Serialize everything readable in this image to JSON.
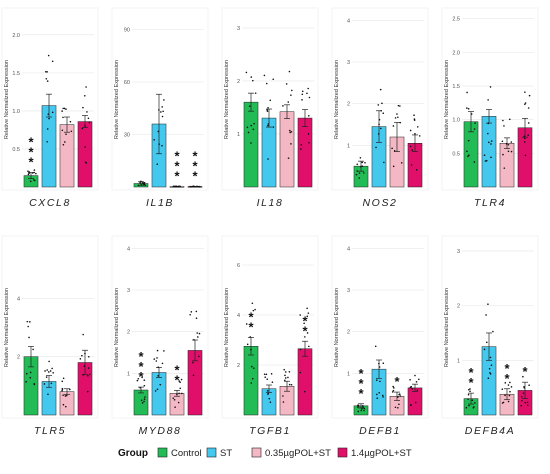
{
  "colors": {
    "Control": "#22bb55",
    "ST": "#44c8ee",
    "0.35µgPOL+ST": "#f4b8c4",
    "1.4µgPOL+ST": "#e0106a"
  },
  "legend": {
    "title": "Group",
    "items": [
      "Control",
      "ST",
      "0.35µgPOL+ST",
      "1.4µgPOL+ST"
    ]
  },
  "chart_data": [
    {
      "type": "bar",
      "title": "CXCL8",
      "ylabel": "Relative Normalized Expression",
      "ylim": [
        0,
        2.3
      ],
      "ticks": [
        "0.5",
        "1.0",
        "1.5",
        "2.0"
      ],
      "tickvals": [
        0.5,
        1.0,
        1.5,
        2.0
      ],
      "categories": [
        "Control",
        "ST",
        "0.35µgPOL+ST",
        "1.4µgPOL+ST"
      ],
      "values": [
        0.15,
        1.07,
        0.82,
        0.86
      ],
      "errors": [
        0.04,
        0.15,
        0.1,
        0.08
      ],
      "annotations": [
        "***",
        "",
        "",
        ""
      ]
    },
    {
      "type": "bar",
      "title": "IL1B",
      "ylabel": "Relative Normalized Expression",
      "ylim": [
        0,
        100
      ],
      "ticks": [
        "30",
        "60",
        "90"
      ],
      "tickvals": [
        30,
        60,
        90
      ],
      "categories": [
        "Control",
        "ST",
        "0.35µgPOL+ST",
        "1.4µgPOL+ST"
      ],
      "values": [
        2,
        36,
        0.3,
        0.3
      ],
      "errors": [
        1,
        17,
        0.1,
        0.1
      ],
      "annotations": [
        "",
        "",
        "***",
        "***"
      ]
    },
    {
      "type": "bar",
      "title": "IL18",
      "ylabel": "Relative Normalized Expression",
      "ylim": [
        0,
        3.3
      ],
      "ticks": [
        "1",
        "2",
        "3"
      ],
      "tickvals": [
        1,
        2,
        3
      ],
      "categories": [
        "Control",
        "ST",
        "0.35µgPOL+ST",
        "1.4µgPOL+ST"
      ],
      "values": [
        1.6,
        1.3,
        1.42,
        1.3
      ],
      "errors": [
        0.17,
        0.17,
        0.13,
        0.16
      ],
      "annotations": [
        "",
        "",
        "",
        ""
      ]
    },
    {
      "type": "bar",
      "title": "NOS2",
      "ylabel": "Relative Normalized Expression",
      "ylim": [
        0,
        4.2
      ],
      "ticks": [
        "1",
        "2",
        "3",
        "4"
      ],
      "tickvals": [
        1,
        2,
        3,
        4
      ],
      "categories": [
        "Control",
        "ST",
        "0.35µgPOL+ST",
        "1.4µgPOL+ST"
      ],
      "values": [
        0.5,
        1.45,
        1.2,
        1.05
      ],
      "errors": [
        0.12,
        0.38,
        0.35,
        0.2
      ],
      "annotations": [
        "",
        "",
        "",
        ""
      ]
    },
    {
      "type": "bar",
      "title": "TLR4",
      "ylabel": "Relative Normalized Expression",
      "ylim": [
        0,
        2.6
      ],
      "ticks": [
        "0.5",
        "1.0",
        "1.5",
        "2.0",
        "2.5"
      ],
      "tickvals": [
        0.5,
        1.0,
        1.5,
        2.0,
        2.5
      ],
      "categories": [
        "Control",
        "ST",
        "0.35µgPOL+ST",
        "1.4µgPOL+ST"
      ],
      "values": [
        0.97,
        1.05,
        0.65,
        0.88
      ],
      "errors": [
        0.15,
        0.1,
        0.08,
        0.14
      ],
      "annotations": [
        "",
        "",
        "",
        ""
      ]
    },
    {
      "type": "bar",
      "title": "TLR5",
      "ylabel": "Relative Normalized Expression",
      "ylim": [
        0,
        6
      ],
      "ticks": [
        "2",
        "4"
      ],
      "tickvals": [
        2,
        4
      ],
      "categories": [
        "Control",
        "ST",
        "0.35µgPOL+ST",
        "1.4µgPOL+ST"
      ],
      "values": [
        2,
        1.15,
        0.8,
        1.8
      ],
      "errors": [
        0.35,
        0.2,
        0.1,
        0.42
      ],
      "annotations": [
        "",
        "",
        "",
        ""
      ]
    },
    {
      "type": "bar",
      "title": "MYD88",
      "ylabel": "Relative Normalized Expression",
      "ylim": [
        0,
        4.2
      ],
      "ticks": [
        "1",
        "2",
        "3",
        "4"
      ],
      "tickvals": [
        1,
        2,
        3,
        4
      ],
      "categories": [
        "Control",
        "ST",
        "0.35µgPOL+ST",
        "1.4µgPOL+ST"
      ],
      "values": [
        0.6,
        1.02,
        0.52,
        1.55
      ],
      "errors": [
        0.07,
        0.12,
        0.07,
        0.25
      ],
      "annotations": [
        "***",
        "",
        "**",
        ""
      ]
    },
    {
      "type": "bar",
      "title": "TGFB1",
      "ylabel": "Relative Normalized Expression",
      "ylim": [
        0,
        7
      ],
      "ticks": [
        "2",
        "4",
        "6"
      ],
      "tickvals": [
        2,
        4,
        6
      ],
      "categories": [
        "Control",
        "ST",
        "0.35µgPOL+ST",
        "1.4µgPOL+ST"
      ],
      "values": [
        2.75,
        1.05,
        1.15,
        2.65
      ],
      "errors": [
        0.35,
        0.15,
        0.2,
        0.3
      ],
      "annotations": [
        "**",
        "",
        "",
        "**"
      ]
    },
    {
      "type": "bar",
      "title": "DEFB1",
      "ylabel": "Relative Normalized Expression",
      "ylim": [
        0,
        4.2
      ],
      "ticks": [
        "1",
        "2",
        "3",
        "4"
      ],
      "tickvals": [
        1,
        2,
        3,
        4
      ],
      "categories": [
        "Control",
        "ST",
        "0.35µgPOL+ST",
        "1.4µgPOL+ST"
      ],
      "values": [
        0.22,
        1.1,
        0.45,
        0.65
      ],
      "errors": [
        0.05,
        0.22,
        0.1,
        0.09
      ],
      "annotations": [
        "***",
        "",
        "*",
        ""
      ]
    },
    {
      "type": "bar",
      "title": "DEFB4A",
      "ylabel": "Relative Normalized Expression",
      "ylim": [
        0,
        3.2
      ],
      "ticks": [
        "1",
        "2",
        "3"
      ],
      "tickvals": [
        1,
        2,
        3
      ],
      "categories": [
        "Control",
        "ST",
        "0.35µgPOL+ST",
        "1.4µgPOL+ST"
      ],
      "values": [
        0.3,
        1.25,
        0.38,
        0.45
      ],
      "errors": [
        0.1,
        0.25,
        0.1,
        0.15
      ],
      "annotations": [
        "**",
        "",
        "**",
        "*"
      ]
    }
  ]
}
